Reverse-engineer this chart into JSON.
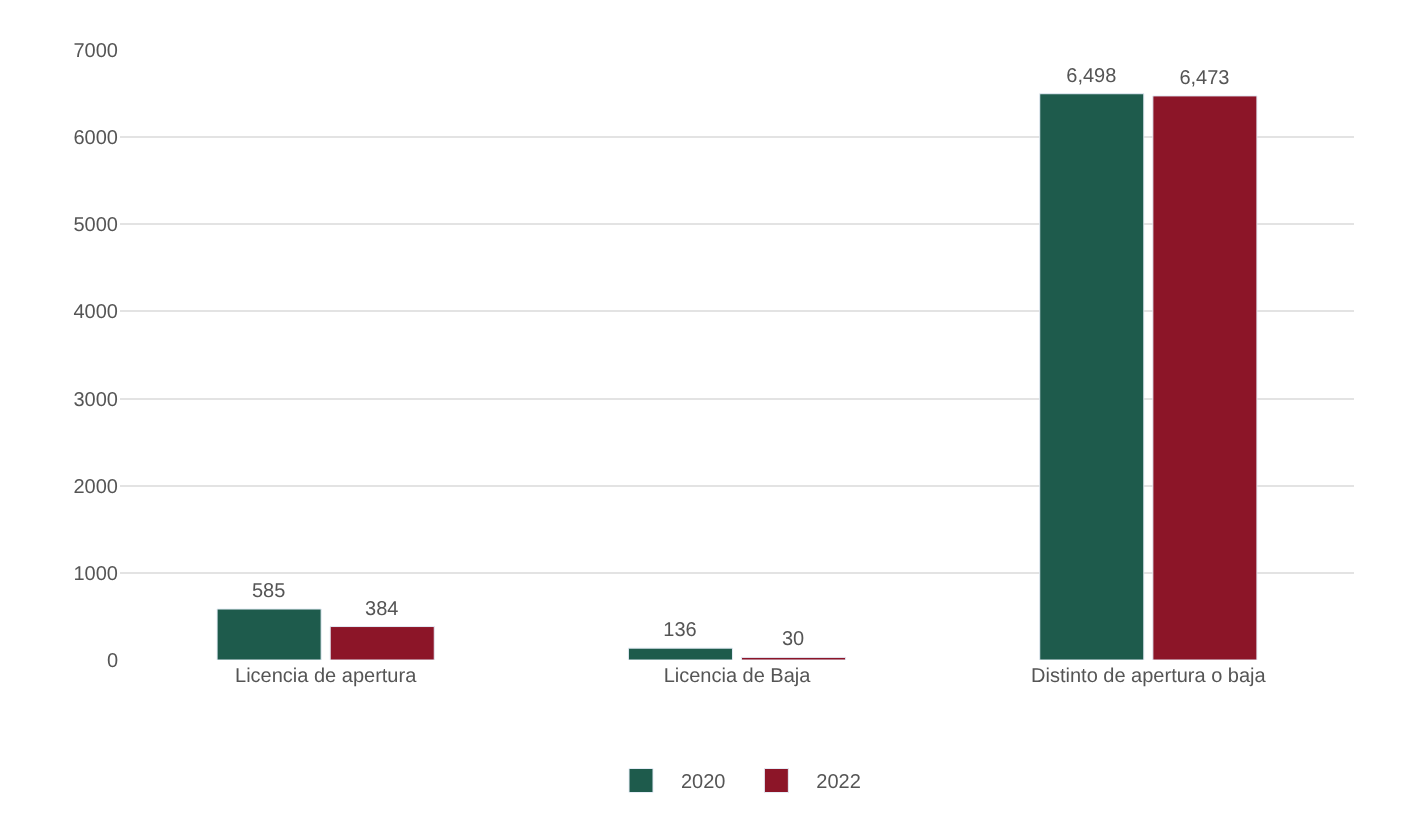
{
  "chart_data": {
    "type": "bar",
    "categories": [
      "Licencia de apertura",
      "Licencia de Baja",
      "Distinto de apertura o baja"
    ],
    "series": [
      {
        "name": "2020",
        "color": "#1e5b4c",
        "values": [
          585,
          136,
          6498
        ],
        "value_labels": [
          "585",
          "136",
          "6,498"
        ]
      },
      {
        "name": "2022",
        "color": "#8c1528",
        "values": [
          384,
          30,
          6473
        ],
        "value_labels": [
          "384",
          "30",
          "6,473"
        ]
      }
    ],
    "ylim": [
      0,
      7000
    ],
    "yticks": [
      0,
      1000,
      2000,
      3000,
      4000,
      5000,
      6000,
      7000
    ],
    "grid": "y",
    "legend": "bottom"
  }
}
